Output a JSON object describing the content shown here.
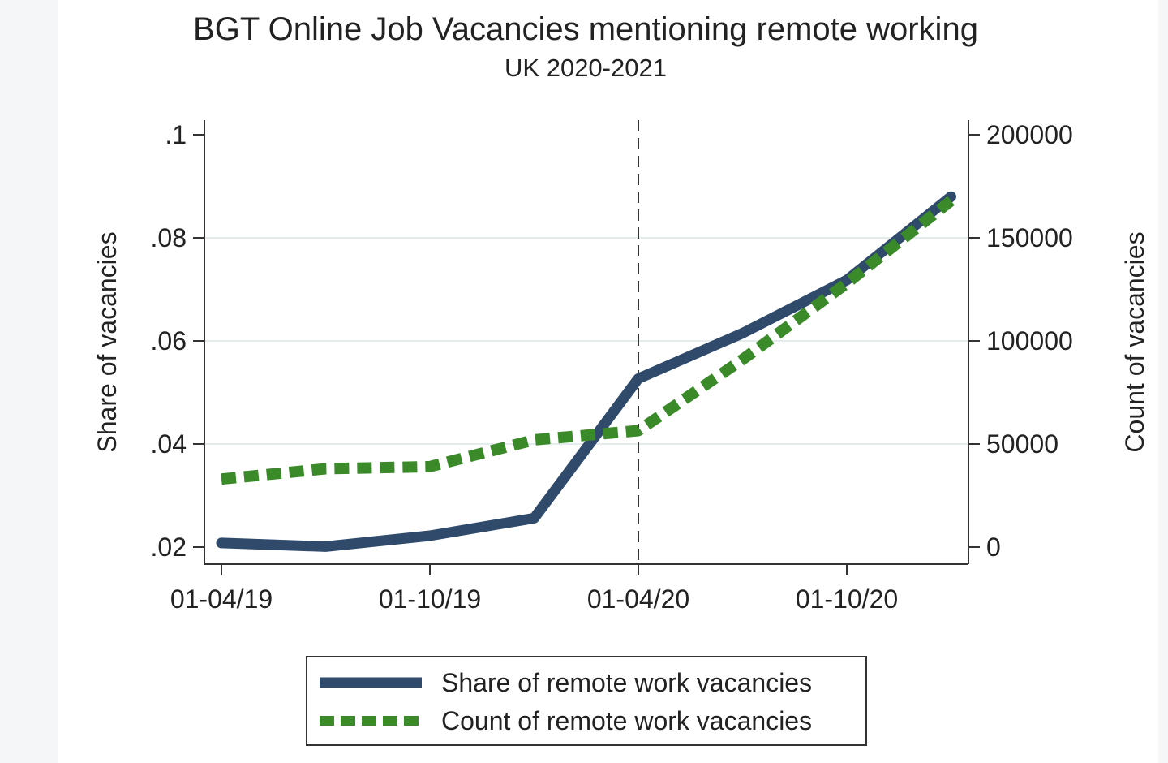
{
  "chart_data": {
    "type": "line",
    "title": "BGT Online Job Vacancies mentioning remote working",
    "subtitle": "UK 2020-2021",
    "xlabel": "",
    "ylabel_left": "Share of vacancies",
    "ylabel_right": "Count of vacancies",
    "x_tick_labels": [
      "01-04/19",
      "01-10/19",
      "01-04/20",
      "01-10/20"
    ],
    "y_left_tick_labels": [
      ".02",
      ".04",
      ".06",
      ".08",
      ".1"
    ],
    "y_right_tick_labels": [
      "0",
      "50000",
      "100000",
      "150000",
      "200000"
    ],
    "ylim_left": [
      0.02,
      0.1
    ],
    "ylim_right": [
      0,
      200000
    ],
    "x_months_since_apr2019": [
      0,
      3,
      6,
      9,
      12,
      15,
      18,
      21
    ],
    "series": [
      {
        "name": "Share of remote work vacancies",
        "axis": "left",
        "style": "solid",
        "color": "#2f4a6b",
        "values": [
          0.0208,
          0.0201,
          0.0222,
          0.0256,
          0.0527,
          0.0615,
          0.0718,
          0.088
        ]
      },
      {
        "name": "Count of remote work vacancies",
        "axis": "right",
        "style": "dashed",
        "color": "#3b8a2a",
        "values": [
          33000,
          38000,
          39000,
          52000,
          56500,
          91000,
          128000,
          168000
        ]
      }
    ],
    "reference_line_x_month": 12,
    "grid": true,
    "legend_position": "bottom"
  }
}
